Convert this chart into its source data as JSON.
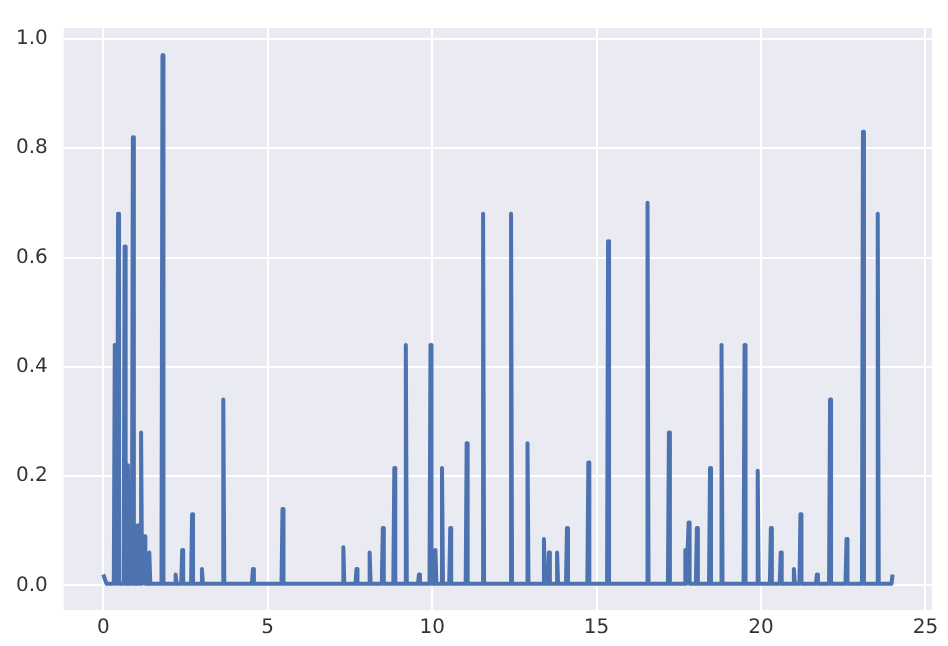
{
  "chart_data": {
    "type": "line",
    "x": [
      0,
      0.1,
      0.32,
      0.35,
      0.38,
      0.42,
      0.45,
      0.48,
      0.62,
      0.65,
      0.68,
      0.72,
      0.75,
      0.78,
      0.87,
      0.9,
      0.93,
      1.02,
      1.05,
      1.08,
      1.12,
      1.15,
      1.18,
      1.22,
      1.25,
      1.28,
      1.37,
      1.4,
      1.43,
      1.77,
      1.8,
      1.83,
      2.17,
      2.2,
      2.23,
      2.37,
      2.4,
      2.43,
      2.67,
      2.7,
      2.73,
      2.97,
      3.0,
      3.03,
      3.62,
      3.65,
      3.68,
      4.52,
      4.55,
      4.58,
      5.42,
      5.45,
      5.48,
      7.27,
      7.3,
      7.33,
      7.67,
      7.7,
      7.73,
      8.07,
      8.1,
      8.13,
      8.47,
      8.5,
      8.53,
      8.82,
      8.85,
      8.88,
      9.17,
      9.2,
      9.23,
      9.57,
      9.6,
      9.63,
      9.92,
      9.95,
      9.98,
      10.07,
      10.1,
      10.13,
      10.27,
      10.3,
      10.33,
      10.52,
      10.55,
      10.58,
      11.02,
      11.05,
      11.08,
      11.52,
      11.55,
      11.58,
      12.37,
      12.4,
      12.43,
      12.87,
      12.9,
      12.93,
      13.37,
      13.4,
      13.43,
      13.52,
      13.55,
      13.58,
      13.77,
      13.8,
      13.83,
      14.07,
      14.1,
      14.13,
      14.72,
      14.75,
      14.78,
      15.32,
      15.35,
      15.38,
      16.52,
      16.55,
      16.58,
      17.17,
      17.2,
      17.23,
      17.67,
      17.7,
      17.73,
      17.77,
      17.8,
      17.83,
      18.02,
      18.05,
      18.08,
      18.42,
      18.45,
      18.48,
      18.77,
      18.8,
      18.83,
      19.47,
      19.5,
      19.53,
      19.87,
      19.9,
      19.93,
      20.27,
      20.3,
      20.33,
      20.57,
      20.6,
      20.63,
      20.97,
      21.0,
      21.03,
      21.17,
      21.2,
      21.23,
      21.67,
      21.7,
      21.73,
      22.07,
      22.1,
      22.13,
      22.57,
      22.6,
      22.63,
      23.07,
      23.1,
      23.13,
      23.52,
      23.55,
      23.58,
      23.97,
      24.0
    ],
    "series": [
      {
        "color": "#4c72b0",
        "values": [
          0.02,
          0.003,
          0.003,
          0.44,
          0.003,
          0.003,
          0.68,
          0.003,
          0.003,
          0.62,
          0.003,
          0.003,
          0.22,
          0.003,
          0.003,
          0.82,
          0.003,
          0.003,
          0.11,
          0.003,
          0.003,
          0.28,
          0.003,
          0.003,
          0.09,
          0.003,
          0.003,
          0.06,
          0.003,
          0.003,
          0.97,
          0.003,
          0.003,
          0.02,
          0.003,
          0.003,
          0.065,
          0.003,
          0.003,
          0.13,
          0.003,
          0.003,
          0.03,
          0.003,
          0.003,
          0.34,
          0.003,
          0.003,
          0.03,
          0.003,
          0.003,
          0.14,
          0.003,
          0.003,
          0.07,
          0.003,
          0.003,
          0.03,
          0.003,
          0.003,
          0.06,
          0.003,
          0.003,
          0.105,
          0.003,
          0.003,
          0.215,
          0.003,
          0.003,
          0.44,
          0.003,
          0.003,
          0.02,
          0.003,
          0.003,
          0.44,
          0.003,
          0.003,
          0.065,
          0.003,
          0.003,
          0.215,
          0.003,
          0.003,
          0.105,
          0.003,
          0.003,
          0.26,
          0.003,
          0.003,
          0.68,
          0.003,
          0.003,
          0.68,
          0.003,
          0.003,
          0.26,
          0.003,
          0.003,
          0.085,
          0.003,
          0.003,
          0.06,
          0.003,
          0.003,
          0.06,
          0.003,
          0.003,
          0.105,
          0.003,
          0.003,
          0.225,
          0.003,
          0.003,
          0.63,
          0.003,
          0.003,
          0.7,
          0.003,
          0.003,
          0.28,
          0.003,
          0.003,
          0.065,
          0.003,
          0.003,
          0.115,
          0.003,
          0.003,
          0.105,
          0.003,
          0.003,
          0.215,
          0.003,
          0.003,
          0.44,
          0.003,
          0.003,
          0.44,
          0.003,
          0.003,
          0.21,
          0.003,
          0.003,
          0.105,
          0.003,
          0.003,
          0.06,
          0.003,
          0.003,
          0.03,
          0.003,
          0.003,
          0.13,
          0.003,
          0.003,
          0.02,
          0.003,
          0.003,
          0.34,
          0.003,
          0.003,
          0.085,
          0.003,
          0.003,
          0.83,
          0.003,
          0.003,
          0.68,
          0.003,
          0.003,
          0.02
        ]
      }
    ],
    "xlim": [
      -1.2,
      25.2
    ],
    "xticks": [
      0,
      5,
      10,
      15,
      20,
      25
    ],
    "ylim": [
      -0.045,
      1.02
    ],
    "yticks": [
      {
        "value": 0,
        "label": "0.0"
      },
      0.2,
      0.4,
      0.6,
      0.8,
      {
        "value": 1,
        "label": "1.0"
      }
    ],
    "grid": true,
    "legend": false,
    "marker": "none",
    "line_style": "solid"
  }
}
